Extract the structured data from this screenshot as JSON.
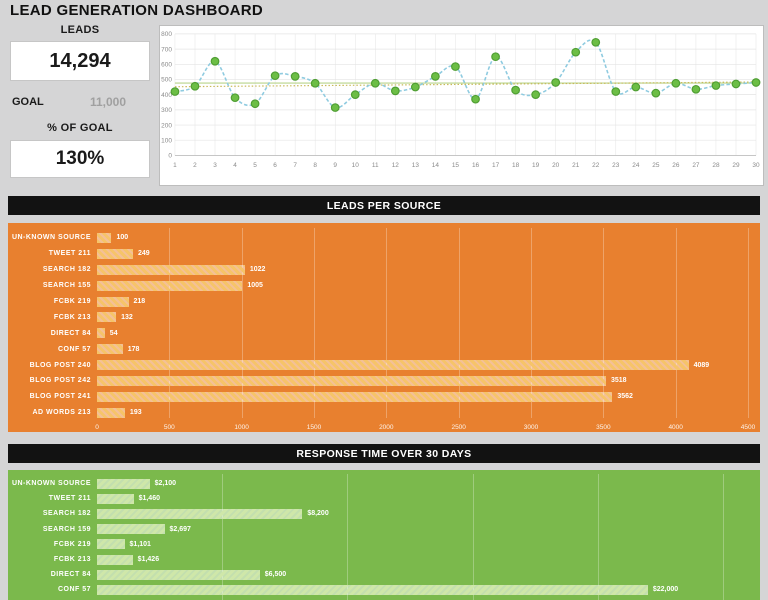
{
  "page": {
    "title": "LEAD GENERATION DASHBOARD"
  },
  "stats": {
    "leads_label": "LEADS",
    "leads_value": "14,294",
    "goal_label": "GOAL",
    "goal_value": "11,000",
    "pct_label": "% OF GOAL",
    "pct_value": "130%"
  },
  "sections": {
    "source_header": "LEADS PER SOURCE",
    "response_header": "RESPONSE TIME OVER 30 DAYS"
  },
  "chart_data": [
    {
      "id": "leads-trend",
      "type": "line",
      "title": "Leads per day over 30 days",
      "x": [
        1,
        2,
        3,
        4,
        5,
        6,
        7,
        8,
        9,
        10,
        11,
        12,
        13,
        14,
        15,
        16,
        17,
        18,
        19,
        20,
        21,
        22,
        23,
        24,
        25,
        26,
        27,
        28,
        29,
        30
      ],
      "values": [
        420,
        455,
        620,
        380,
        340,
        525,
        520,
        475,
        315,
        400,
        475,
        425,
        450,
        520,
        585,
        370,
        650,
        430,
        400,
        480,
        680,
        745,
        420,
        450,
        410,
        475,
        435,
        460,
        470,
        480
      ],
      "ylim": [
        0,
        800
      ],
      "yticks": [
        0,
        100,
        200,
        300,
        400,
        500,
        600,
        700,
        800
      ],
      "average_line": 476,
      "trend_line": {
        "start": 452,
        "end": 483
      },
      "grid": true,
      "legend": "none",
      "line_style": "dashed-smooth",
      "marker": "circle"
    },
    {
      "id": "leads-per-source",
      "type": "bar",
      "orientation": "horizontal",
      "title": "LEADS PER SOURCE",
      "categories": [
        "UN-KNOWN SOURCE",
        "TWEET 211",
        "SEARCH 182",
        "SEARCH 155",
        "FCBK 219",
        "FCBK 213",
        "DIRECT 84",
        "CONF 57",
        "BLOG POST 240",
        "BLOG POST 242",
        "BLOG POST 241",
        "AD WORDS 213"
      ],
      "values": [
        100,
        249,
        1022,
        1005,
        218,
        132,
        54,
        178,
        4089,
        3518,
        3562,
        193
      ],
      "value_labels": [
        "100",
        "249",
        "1022",
        "1005",
        "218",
        "132",
        "54",
        "178",
        "4089",
        "3518",
        "3562",
        "193"
      ],
      "xlim": [
        0,
        4500
      ],
      "xticks": [
        0,
        500,
        1000,
        1500,
        2000,
        2500,
        3000,
        3500,
        4000,
        4500
      ],
      "xticks_visible": true
    },
    {
      "id": "response-time",
      "type": "bar",
      "orientation": "horizontal",
      "title": "RESPONSE TIME OVER 30 DAYS",
      "categories": [
        "UN-KNOWN SOURCE",
        "TWEET 211",
        "SEARCH 182",
        "SEARCH 159",
        "FCBK 219",
        "FCBK 213",
        "DIRECT 84",
        "CONF 57"
      ],
      "values": [
        2100,
        1460,
        8200,
        2697,
        1101,
        1426,
        6500,
        22000
      ],
      "value_labels": [
        "$2,100",
        "$1,460",
        "$8,200",
        "$2,697",
        "$1,101",
        "$1,426",
        "$6,500",
        "$22,000"
      ],
      "xlim": [
        0,
        26000
      ],
      "gridline_interval": 5000,
      "xticks": [],
      "xticks_visible": false
    }
  ],
  "colors": {
    "page_bg": "#D5D5D6",
    "header_bar_bg": "#121212",
    "header_bar_text": "#FFFFFF",
    "goal_value_text": "#A0A0A0",
    "orange_bg": "#E8802F",
    "orange_bar": "#F6C469",
    "green_bg": "#7BB94C",
    "green_bar": "#CFE7A9",
    "line_stroke": "#8FCBE0",
    "marker_fill": "#6CBE45",
    "marker_stroke": "#4F9E33",
    "trend_color": "#C9B959",
    "average_color": "#B9D48B",
    "grid_color": "#E4E4E4",
    "axis_line": "#B3B3B3"
  }
}
